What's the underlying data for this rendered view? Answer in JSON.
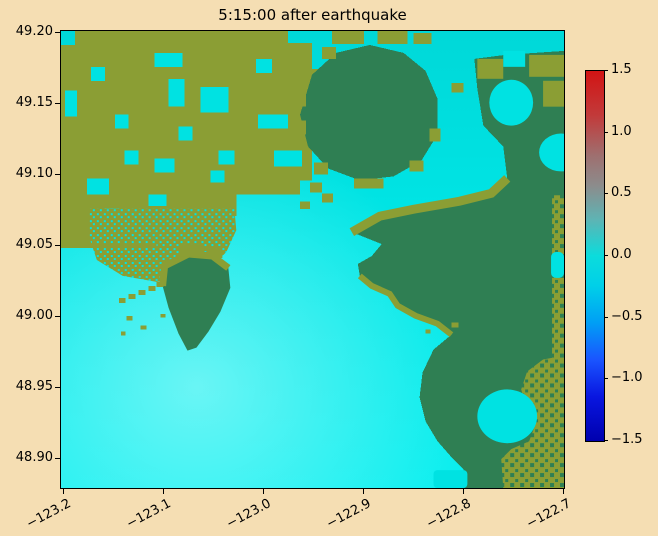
{
  "figure": {
    "title": "5:15:00 after earthquake"
  },
  "colors": {
    "background": "#f5deb3",
    "water": "#00e2e2",
    "land-low": "#8b9e34",
    "land-high": "#2f7f53",
    "frame": "#000000",
    "text": "#000000"
  },
  "chart_data": {
    "type": "heatmap",
    "title": "5:15:00 after earthquake",
    "xlabel": "",
    "ylabel": "",
    "x_ticks": [
      "−123.2",
      "−123.1",
      "−123.0",
      "−122.9",
      "−122.8",
      "−122.7"
    ],
    "y_ticks": [
      "49.20",
      "49.15",
      "49.10",
      "49.05",
      "49.00",
      "48.95",
      "48.90"
    ],
    "xlim": [
      -123.2,
      -122.7
    ],
    "ylim": [
      48.88,
      49.2
    ],
    "grid": false,
    "legend": "none",
    "colorbar": {
      "vmin": -1.5,
      "vmax": 1.5,
      "ticks": [
        "1.5",
        "1.0",
        "0.5",
        "0.0",
        "−0.5",
        "−1.0",
        "−1.5"
      ],
      "gradient": [
        [
          "#d21414",
          0
        ],
        [
          "#c23a3a",
          12
        ],
        [
          "#9e7070",
          23
        ],
        [
          "#8c8c8c",
          31
        ],
        [
          "#5fb3b3",
          40
        ],
        [
          "#0bdcdc",
          50
        ],
        [
          "#00d0e8",
          58
        ],
        [
          "#009ff5",
          68
        ],
        [
          "#1a55ff",
          78
        ],
        [
          "#0916e0",
          88
        ],
        [
          "#0000ae",
          100
        ]
      ]
    },
    "description": "Modeled tsunami sea-surface elevation over a coastal river-delta region: cyan = water near 0 m change, olive = low-lying land, dark green = higher terrain; coarse blocky grid cells visible in the northern half, finer resolution in the south."
  }
}
